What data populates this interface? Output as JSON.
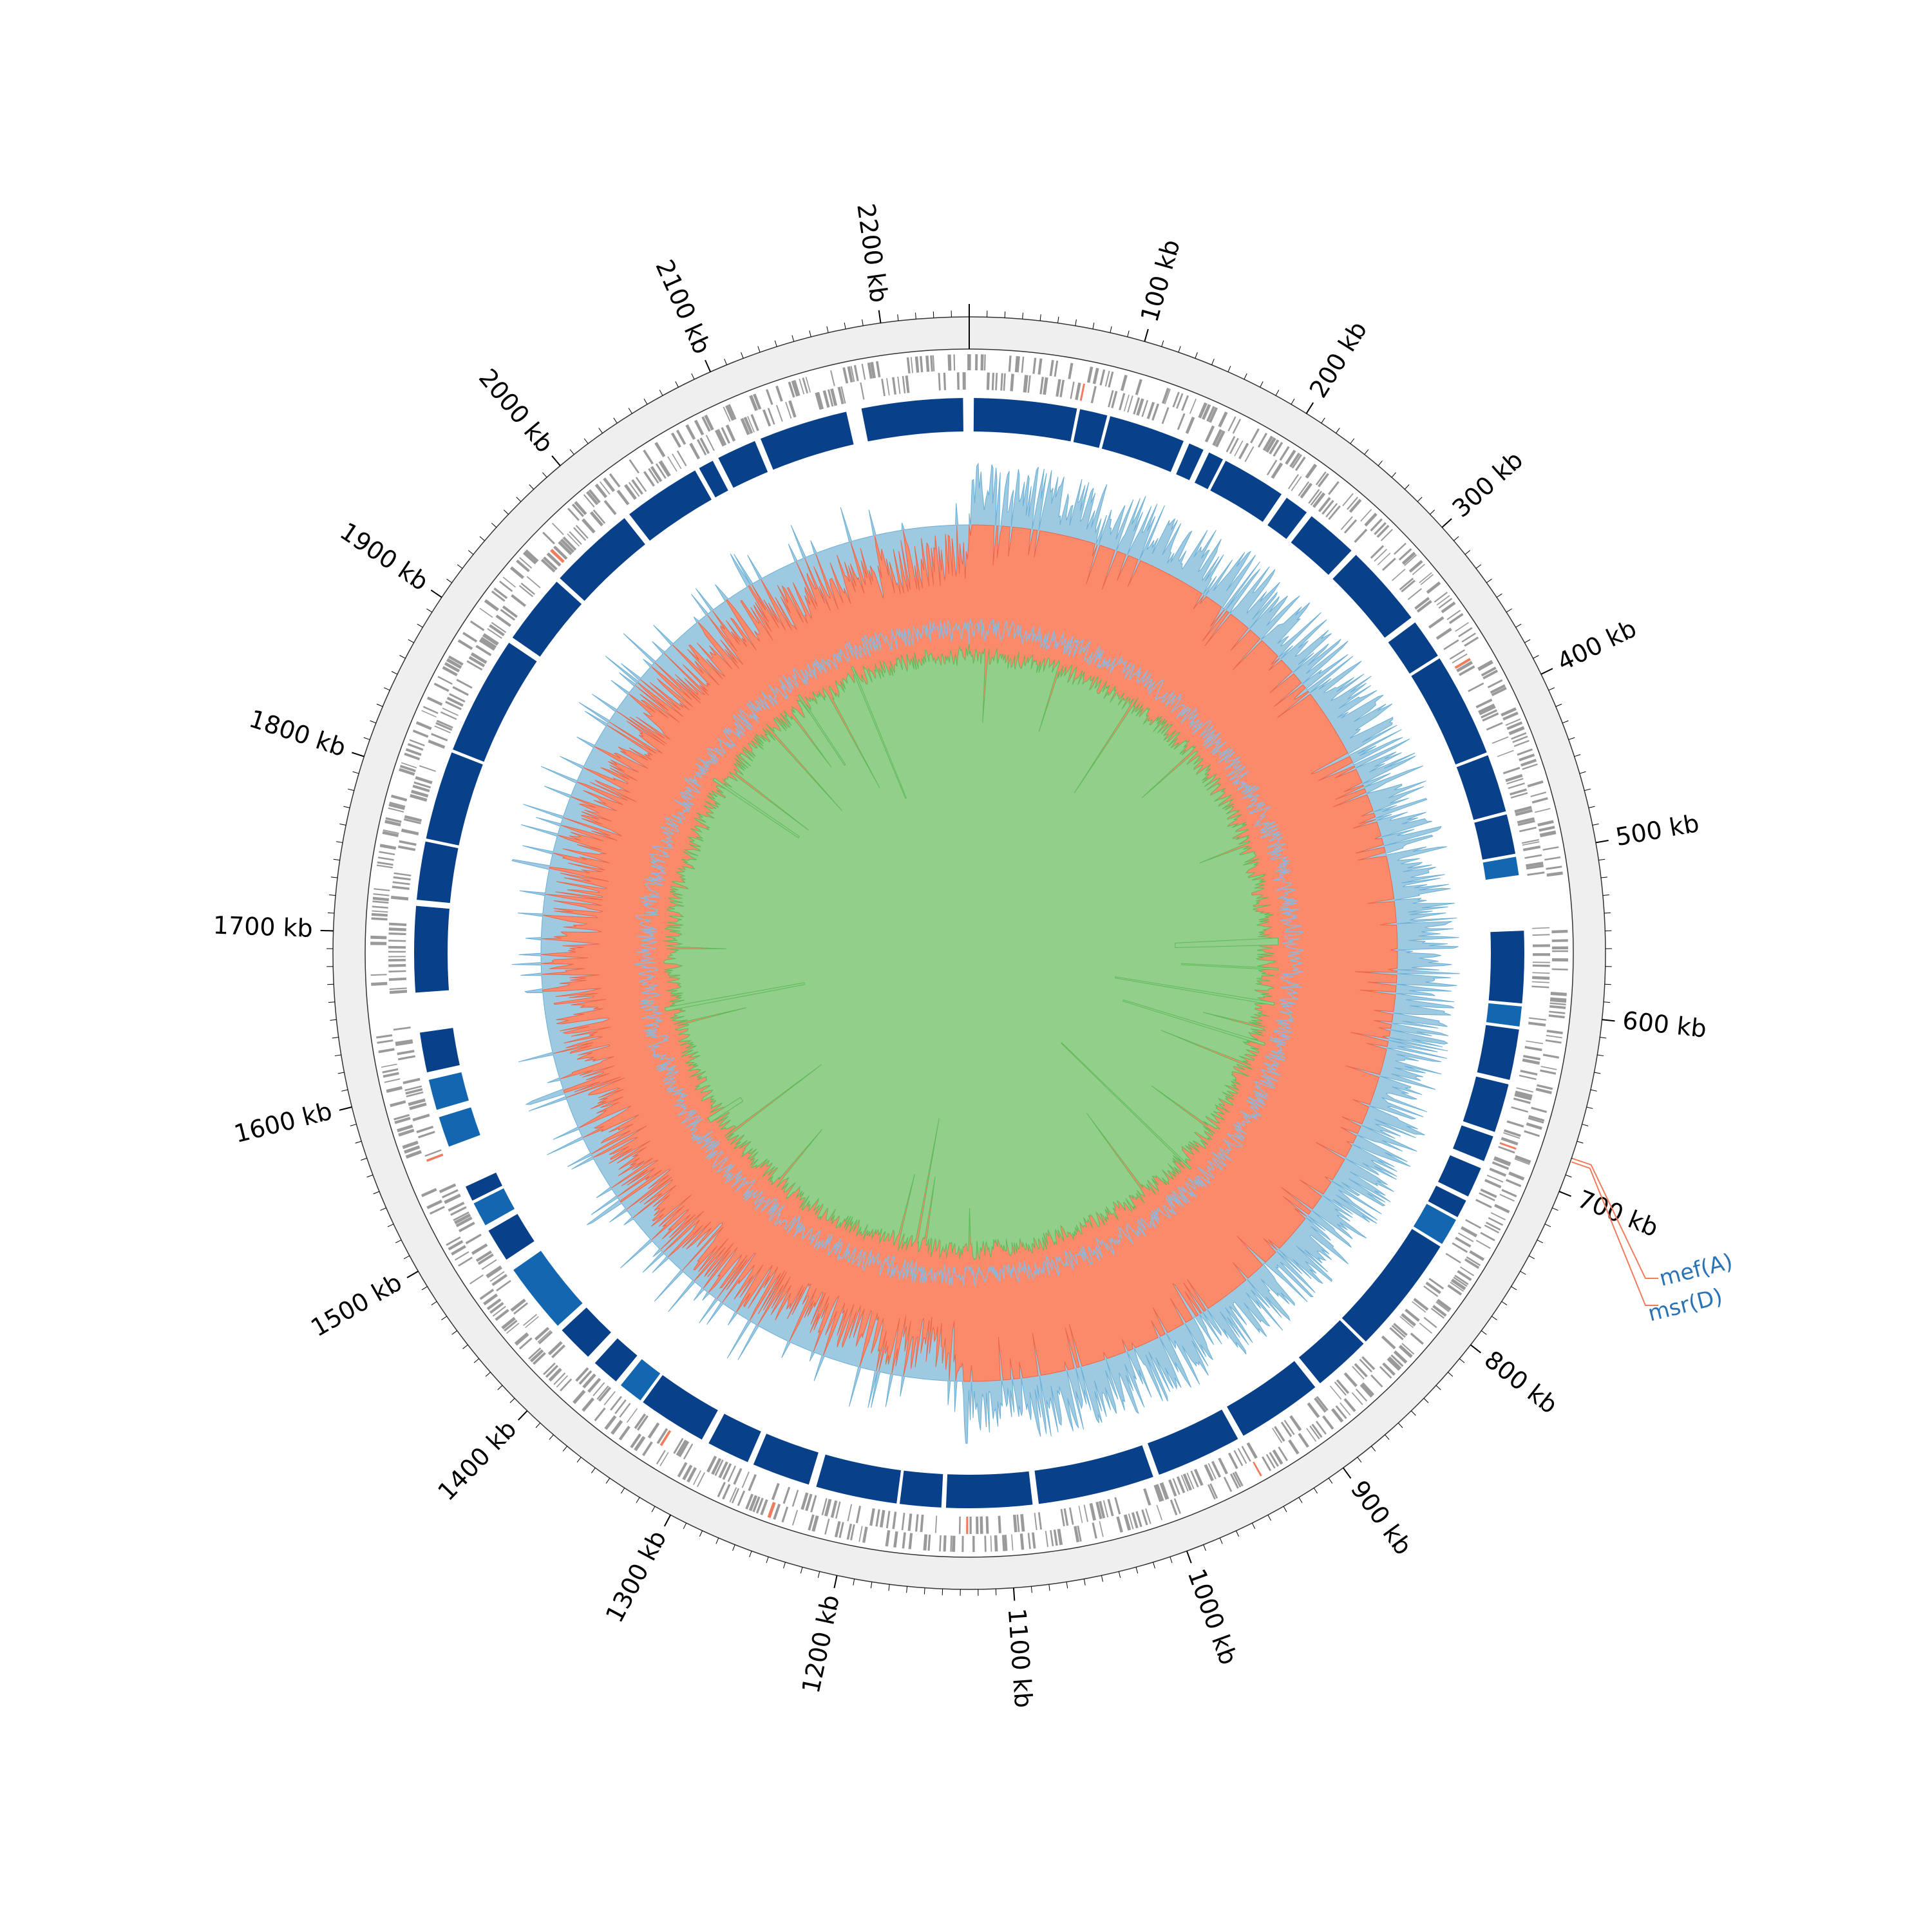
{
  "genome_size_kb": 2250,
  "axis": {
    "tick_labels": [
      "100 kb",
      "200 kb",
      "300 kb",
      "400 kb",
      "500 kb",
      "600 kb",
      "700 kb",
      "800 kb",
      "900 kb",
      "1000 kb",
      "1100 kb",
      "1200 kb",
      "1300 kb",
      "1400 kb",
      "1500 kb",
      "1600 kb",
      "1700 kb",
      "1800 kb",
      "1900 kb",
      "2000 kb",
      "2100 kb",
      "2200 kb"
    ],
    "tick_positions_kb": [
      100,
      200,
      300,
      400,
      500,
      600,
      700,
      800,
      900,
      1000,
      1100,
      1200,
      1300,
      1400,
      1500,
      1600,
      1700,
      1800,
      1900,
      2000,
      2100,
      2200
    ],
    "minor_tick_step_kb": 10
  },
  "contig_gaps_kb": [
    [
      515,
      545
    ],
    [
      1640,
      1660
    ],
    [
      1540,
      1555
    ]
  ],
  "annotated_genes": [
    {
      "name": "mef(A)",
      "position_kb": 680
    },
    {
      "name": "msr(D)",
      "position_kb": 682
    }
  ],
  "colors": {
    "backbone_ring": "#efefef",
    "cds": "#9a9a9a",
    "highlight_cds": "#f07c5c",
    "block_dark": "#08408a",
    "block_light": "#1366b0",
    "gc_content_positive": "#9ecae1",
    "gc_content_negative": "#fb8a6a",
    "gc_skew_positive": "#91cf8a",
    "gc_skew_negative": "#8bb9de",
    "label_blue": "#2a73b5",
    "label_line": "#f07c5c"
  }
}
